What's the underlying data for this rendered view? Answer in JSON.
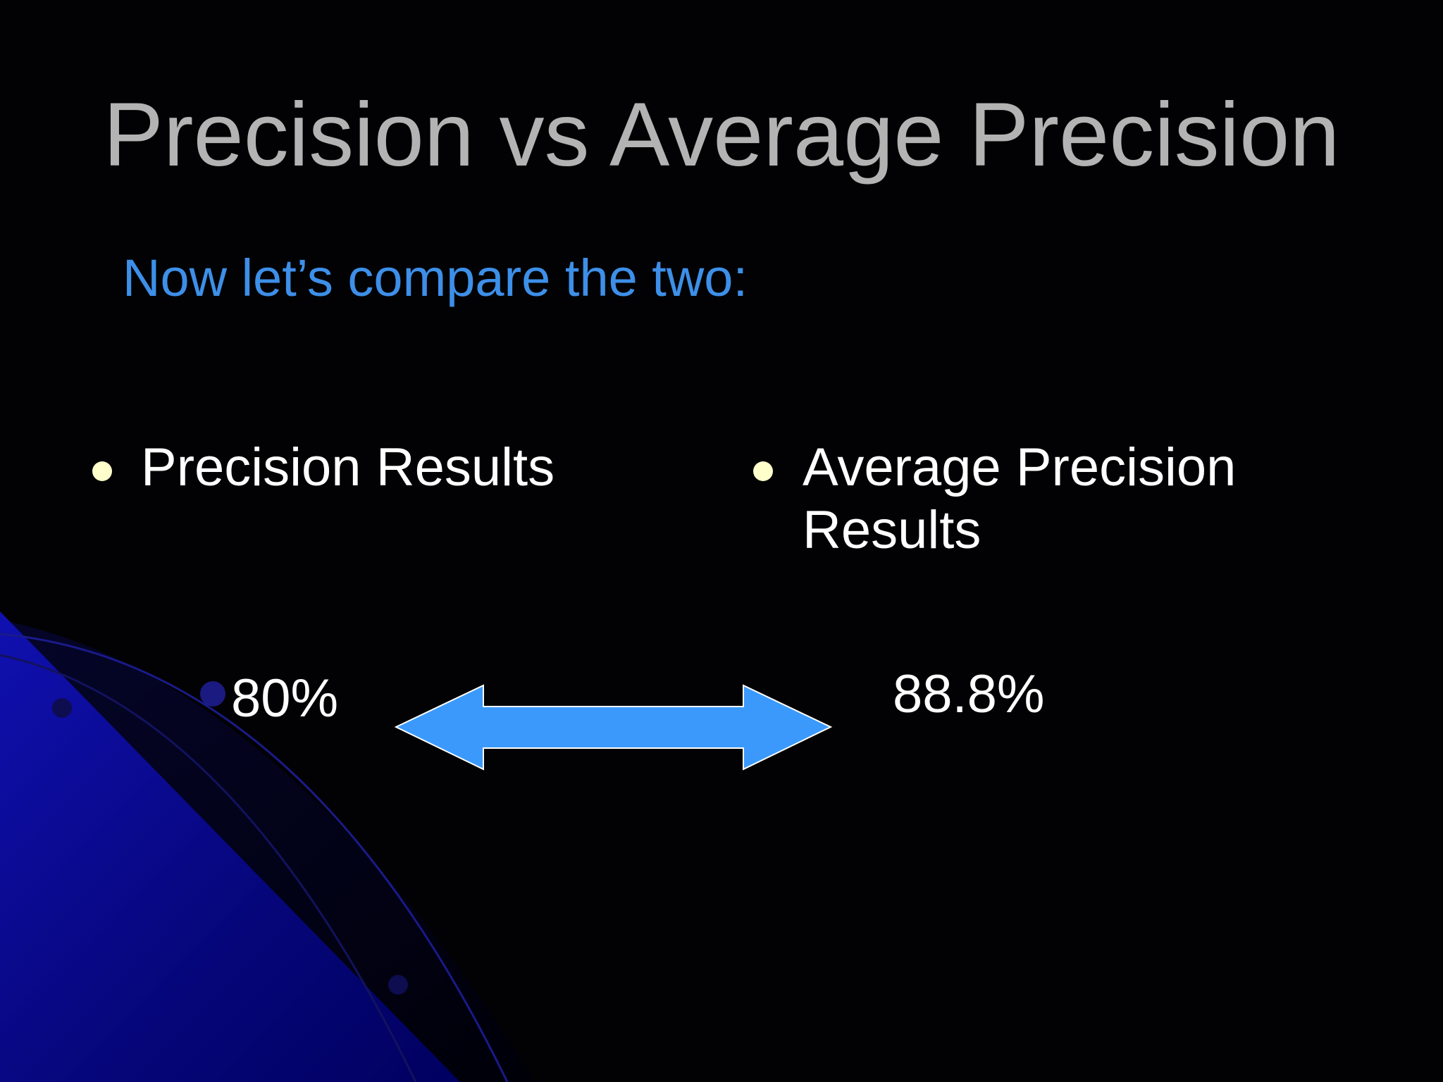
{
  "title": "Precision vs Average Precision",
  "subtitle": "Now let’s compare the two:",
  "columns": [
    {
      "bullet": "Precision Results",
      "value": "80%"
    },
    {
      "bullet": "Average Precision Results",
      "value": "88.8%"
    }
  ]
}
